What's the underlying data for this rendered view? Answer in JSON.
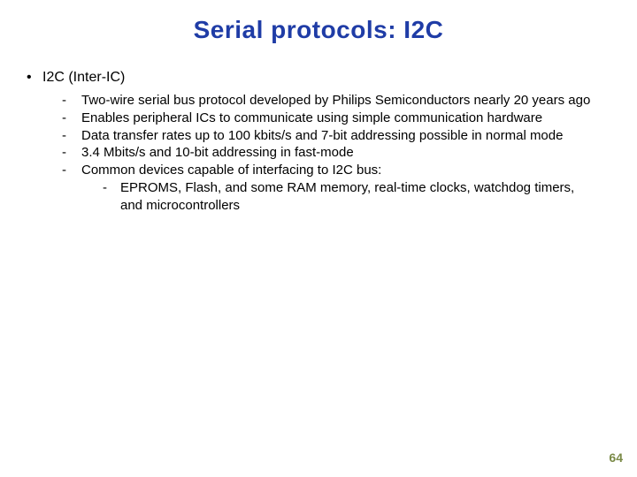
{
  "colors": {
    "title": "#1f3ca6",
    "pagenum": "#7a8a47",
    "body": "#000000",
    "background": "#ffffff"
  },
  "typography": {
    "title_font": "Arial",
    "title_weight": 700,
    "title_size_pt": 21,
    "body_font": "Verdana",
    "l1_size_pt": 12,
    "l2_size_pt": 11,
    "l3_size_pt": 11
  },
  "title": "Serial protocols: I2C",
  "heading": {
    "bullet": "•",
    "text": "I2C (Inter-IC)"
  },
  "bullets": [
    {
      "marker": "-",
      "text": "Two-wire serial bus protocol developed by Philips Semiconductors nearly 20 years ago"
    },
    {
      "marker": "-",
      "text": "Enables peripheral ICs to communicate using simple communication hardware"
    },
    {
      "marker": "-",
      "text": "Data transfer rates up to 100 kbits/s and 7-bit addressing possible in normal mode"
    },
    {
      "marker": "-",
      "text": "3.4 Mbits/s and 10-bit addressing in fast-mode"
    },
    {
      "marker": "-",
      "text": "Common devices capable of interfacing to I2C bus:"
    }
  ],
  "subbullets": [
    {
      "marker": "-",
      "text": "EPROMS, Flash, and some RAM memory, real-time clocks, watchdog timers, and microcontrollers"
    }
  ],
  "pagenum": "64"
}
